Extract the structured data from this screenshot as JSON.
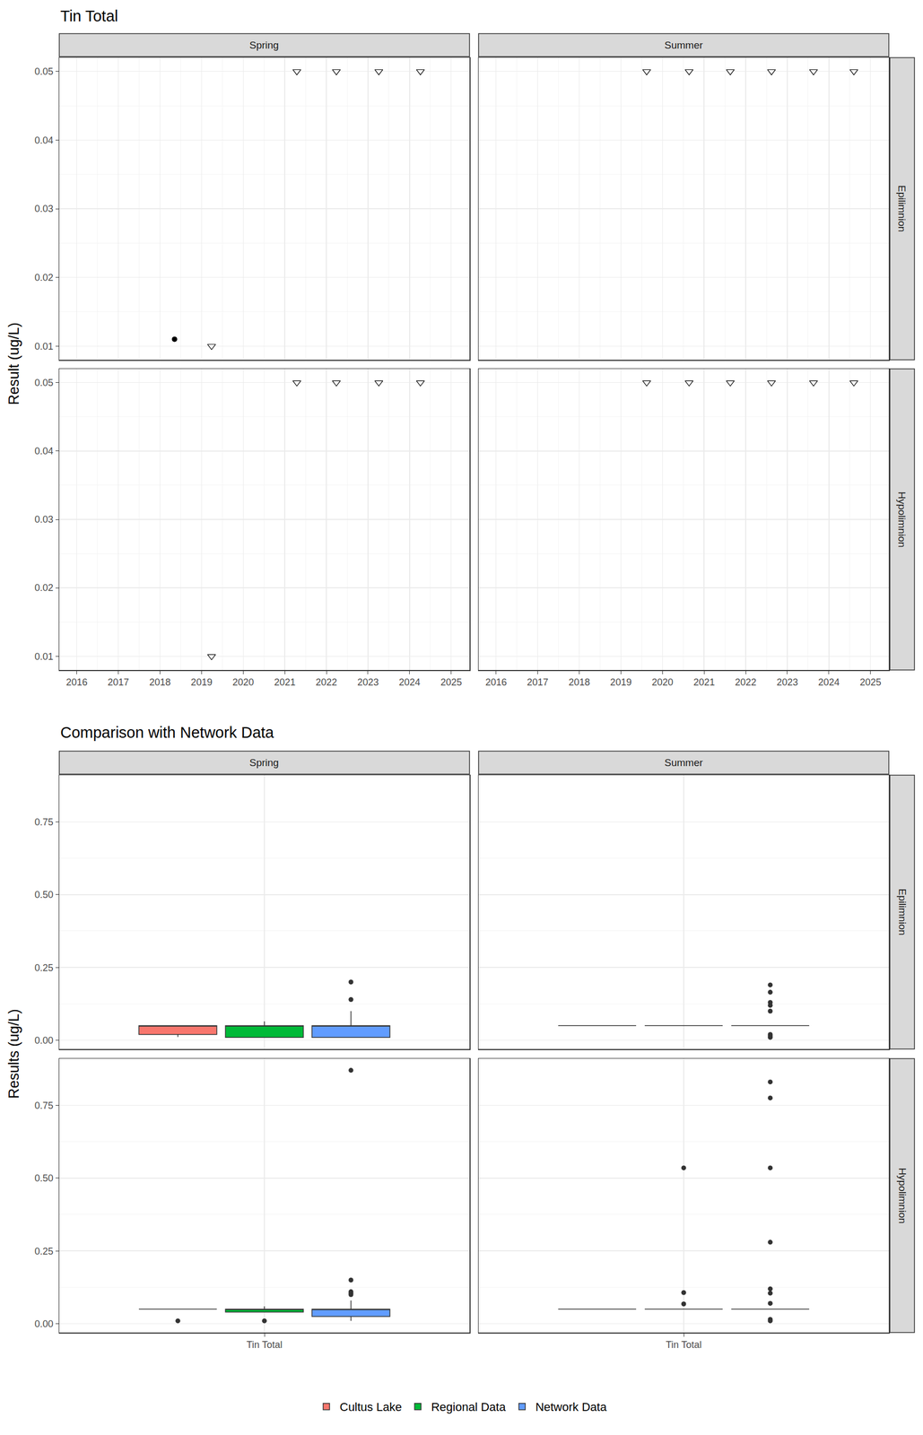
{
  "chart_data": [
    {
      "type": "scatter",
      "title": "Tin Total",
      "y_label": "Result (ug/L)",
      "columns": [
        "Spring",
        "Summer"
      ],
      "rows": [
        "Epilimnion",
        "Hypolimnion"
      ],
      "xlim": [
        2015.58,
        2025.44
      ],
      "xticks": [
        2016,
        2017,
        2018,
        2019,
        2020,
        2021,
        2022,
        2023,
        2024,
        2025
      ],
      "ylim": [
        0.008,
        0.052
      ],
      "yticks": [
        0.01,
        0.02,
        0.03,
        0.04,
        0.05
      ],
      "grid": true,
      "facets": [
        {
          "column": "Spring",
          "row": "Epilimnion",
          "series": [
            {
              "marker": "circle",
              "color": "#000000",
              "x": [
                2018.35
              ],
              "values": [
                0.011
              ]
            },
            {
              "marker": "triangle-down-open",
              "color": "#000000",
              "x": [
                2019.24,
                2021.29,
                2022.24,
                2023.26,
                2024.26
              ],
              "values": [
                0.01,
                0.05,
                0.05,
                0.05,
                0.05
              ]
            }
          ]
        },
        {
          "column": "Summer",
          "row": "Epilimnion",
          "series": [
            {
              "marker": "triangle-down-open",
              "color": "#000000",
              "x": [
                2019.62,
                2020.64,
                2021.63,
                2022.62,
                2023.63,
                2024.6
              ],
              "values": [
                0.05,
                0.05,
                0.05,
                0.05,
                0.05,
                0.05
              ]
            }
          ]
        },
        {
          "column": "Spring",
          "row": "Hypolimnion",
          "series": [
            {
              "marker": "triangle-down-open",
              "color": "#000000",
              "x": [
                2019.24,
                2021.29,
                2022.24,
                2023.26,
                2024.26
              ],
              "values": [
                0.01,
                0.05,
                0.05,
                0.05,
                0.05
              ]
            }
          ]
        },
        {
          "column": "Summer",
          "row": "Hypolimnion",
          "series": [
            {
              "marker": "triangle-down-open",
              "color": "#000000",
              "x": [
                2019.62,
                2020.64,
                2021.63,
                2022.62,
                2023.63,
                2024.6
              ],
              "values": [
                0.05,
                0.05,
                0.05,
                0.05,
                0.05,
                0.05
              ]
            }
          ]
        }
      ]
    },
    {
      "type": "box",
      "title": "Comparison with Network Data",
      "y_label": "Results (ug/L)",
      "columns": [
        "Spring",
        "Summer"
      ],
      "rows": [
        "Epilimnion",
        "Hypolimnion"
      ],
      "categories": [
        "Tin Total"
      ],
      "ylim": [
        -0.03,
        0.91
      ],
      "yticks": [
        {
          "value": 0,
          "label": "0.00"
        },
        {
          "value": 0.25,
          "label": "0.25"
        },
        {
          "value": 0.5,
          "label": "0.50"
        },
        {
          "value": 0.75,
          "label": "0.75"
        }
      ],
      "grid": true,
      "legend": "bottom",
      "series": [
        {
          "name": "Cultus Lake",
          "color": "#F8766D"
        },
        {
          "name": "Regional Data",
          "color": "#00BA38"
        },
        {
          "name": "Network Data",
          "color": "#619CFF"
        }
      ],
      "facets": [
        {
          "column": "Spring",
          "row": "Epilimnion",
          "boxes": [
            {
              "series": "Cultus Lake",
              "q1": 0.02,
              "median": 0.05,
              "q3": 0.05,
              "lower": 0.011,
              "upper": 0.05,
              "outliers": []
            },
            {
              "series": "Regional Data",
              "q1": 0.01,
              "median": 0.05,
              "q3": 0.05,
              "lower": 0.01,
              "upper": 0.065,
              "outliers": []
            },
            {
              "series": "Network Data",
              "q1": 0.01,
              "median": 0.05,
              "q3": 0.05,
              "lower": 0.01,
              "upper": 0.1,
              "outliers": [
                0.14,
                0.2
              ]
            }
          ]
        },
        {
          "column": "Summer",
          "row": "Epilimnion",
          "boxes": [
            {
              "series": "Cultus Lake",
              "q1": 0.05,
              "median": 0.05,
              "q3": 0.05,
              "lower": 0.05,
              "upper": 0.05,
              "outliers": []
            },
            {
              "series": "Regional Data",
              "q1": 0.05,
              "median": 0.05,
              "q3": 0.05,
              "lower": 0.05,
              "upper": 0.05,
              "outliers": []
            },
            {
              "series": "Network Data",
              "q1": 0.05,
              "median": 0.05,
              "q3": 0.05,
              "lower": 0.05,
              "upper": 0.05,
              "outliers": [
                0.19,
                0.165,
                0.13,
                0.12,
                0.1,
                0.02,
                0.015,
                0.01
              ]
            }
          ]
        },
        {
          "column": "Spring",
          "row": "Hypolimnion",
          "boxes": [
            {
              "series": "Cultus Lake",
              "q1": 0.05,
              "median": 0.05,
              "q3": 0.05,
              "lower": 0.05,
              "upper": 0.05,
              "outliers": [
                0.01
              ]
            },
            {
              "series": "Regional Data",
              "q1": 0.04,
              "median": 0.05,
              "q3": 0.05,
              "lower": 0.04,
              "upper": 0.06,
              "outliers": [
                0.01
              ]
            },
            {
              "series": "Network Data",
              "q1": 0.025,
              "median": 0.05,
              "q3": 0.05,
              "lower": 0.01,
              "upper": 0.08,
              "outliers": [
                0.1,
                0.105,
                0.11,
                0.15,
                0.87
              ]
            }
          ]
        },
        {
          "column": "Summer",
          "row": "Hypolimnion",
          "boxes": [
            {
              "series": "Cultus Lake",
              "q1": 0.05,
              "median": 0.05,
              "q3": 0.05,
              "lower": 0.05,
              "upper": 0.05,
              "outliers": []
            },
            {
              "series": "Regional Data",
              "q1": 0.05,
              "median": 0.05,
              "q3": 0.05,
              "lower": 0.05,
              "upper": 0.05,
              "outliers": [
                0.535,
                0.107,
                0.068
              ]
            },
            {
              "series": "Network Data",
              "q1": 0.05,
              "median": 0.05,
              "q3": 0.05,
              "lower": 0.05,
              "upper": 0.05,
              "outliers": [
                0.83,
                0.775,
                0.535,
                0.28,
                0.12,
                0.105,
                0.07,
                0.015,
                0.01
              ]
            }
          ]
        }
      ]
    }
  ]
}
